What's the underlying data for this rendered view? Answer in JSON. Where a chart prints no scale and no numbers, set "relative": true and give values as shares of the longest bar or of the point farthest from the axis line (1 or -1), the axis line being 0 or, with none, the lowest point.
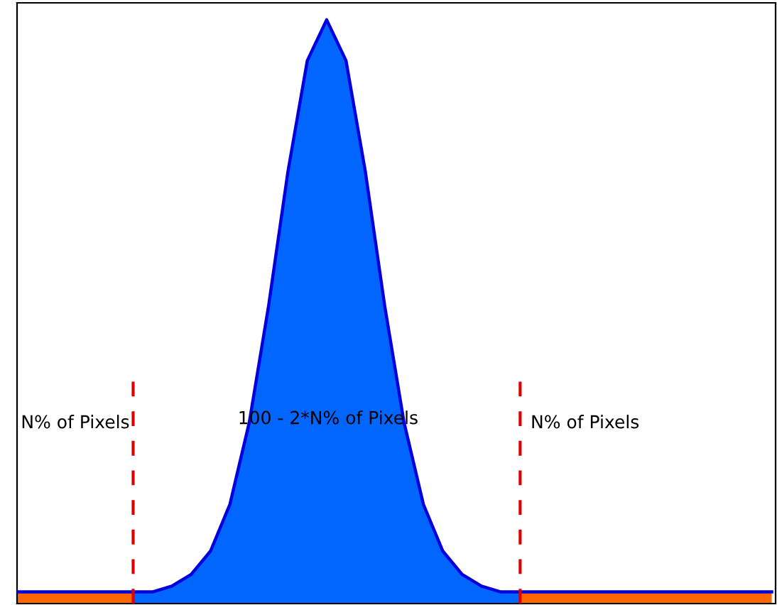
{
  "chart_data": {
    "type": "area",
    "relative": true,
    "categories": [
      null,
      null,
      null,
      null,
      null,
      null,
      null,
      null,
      null,
      null,
      null,
      null,
      null,
      null,
      null,
      null,
      null,
      null,
      null,
      null,
      null,
      null,
      null,
      null,
      null,
      null,
      null,
      null,
      null,
      null,
      null,
      null,
      null,
      null,
      null,
      null,
      null,
      null,
      null,
      null
    ],
    "series": [
      {
        "color": "#ff6600",
        "values": [
          0.02,
          0.02,
          0.02,
          0.02,
          0.02,
          0.02,
          0.02,
          null,
          null,
          null,
          null,
          null,
          null,
          null,
          null,
          null,
          null,
          null,
          null,
          null,
          null,
          null,
          null,
          null,
          null,
          null,
          0.02,
          0.02,
          0.02,
          0.02,
          0.02,
          0.02,
          0.02,
          0.02,
          0.02,
          0.02,
          0.02,
          0.02,
          0.02,
          0.02
        ]
      },
      {
        "color": "#0066ff",
        "values": [
          null,
          null,
          null,
          null,
          null,
          null,
          0.02,
          0.02,
          0.03,
          0.05,
          0.09,
          0.17,
          0.31,
          0.51,
          0.74,
          0.93,
          1,
          0.93,
          0.74,
          0.51,
          0.31,
          0.17,
          0.09,
          0.05,
          0.03,
          0.02,
          0.02,
          null,
          null,
          null,
          null,
          null,
          null,
          null,
          null,
          null,
          null,
          null,
          null,
          null
        ]
      },
      {
        "type": "line",
        "color": "#0000dd",
        "values": [
          0.02,
          0.02,
          0.02,
          0.02,
          0.02,
          0.02,
          0.02,
          0.02,
          0.03,
          0.05,
          0.09,
          0.17,
          0.31,
          0.51,
          0.74,
          0.93,
          1,
          0.93,
          0.74,
          0.51,
          0.31,
          0.17,
          0.09,
          0.05,
          0.03,
          0.02,
          0.02,
          0.02,
          0.02,
          0.02,
          0.02,
          0.02,
          0.02,
          0.02,
          0.02,
          0.02,
          0.02,
          0.02,
          0.02,
          0.02
        ]
      }
    ],
    "annotations": [
      "N% of Pixels",
      "100 - 2*N% of Pixels",
      "N% of Pixels"
    ],
    "legend": false,
    "tick_labels": false
  }
}
